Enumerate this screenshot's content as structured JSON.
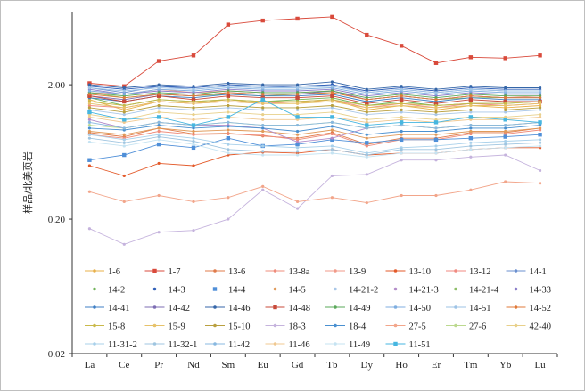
{
  "chart_data": {
    "type": "line",
    "title": "",
    "xlabel": "",
    "ylabel": "样品/北美页岩",
    "y_scale": "log",
    "ylim": [
      0.02,
      7
    ],
    "y_ticks": [
      {
        "value": 2.0,
        "label": "2.00"
      },
      {
        "value": 0.2,
        "label": "0.20"
      },
      {
        "value": 0.02,
        "label": "0.02"
      }
    ],
    "grid": false,
    "legend_position": "bottom-inside",
    "categories": [
      "La",
      "Ce",
      "Pr",
      "Nd",
      "Sm",
      "Eu",
      "Gd",
      "Tb",
      "Dy",
      "Ho",
      "Er",
      "Tm",
      "Yb",
      "Lu"
    ],
    "series": [
      {
        "name": "1-6",
        "color": "#e8b04a",
        "marker": "dot",
        "values": [
          1.55,
          1.3,
          1.5,
          1.45,
          1.55,
          1.45,
          1.45,
          1.55,
          1.3,
          1.4,
          1.3,
          1.4,
          1.35,
          1.4
        ]
      },
      {
        "name": "1-7",
        "color": "#d94a3b",
        "marker": "square",
        "values": [
          2.05,
          1.95,
          3.0,
          3.3,
          5.6,
          6.0,
          6.2,
          6.4,
          4.7,
          3.9,
          2.9,
          3.2,
          3.15,
          3.3
        ]
      },
      {
        "name": "13-6",
        "color": "#e07b4a",
        "marker": "dot",
        "values": [
          0.88,
          0.82,
          0.95,
          0.86,
          0.87,
          0.83,
          0.8,
          0.88,
          0.72,
          0.8,
          0.8,
          0.88,
          0.88,
          0.95
        ]
      },
      {
        "name": "13-8a",
        "color": "#ef8c7b",
        "marker": "dot",
        "values": [
          0.85,
          0.8,
          0.9,
          0.85,
          0.86,
          0.84,
          0.78,
          0.86,
          0.7,
          0.78,
          0.78,
          0.86,
          0.86,
          0.92
        ]
      },
      {
        "name": "13-9",
        "color": "#f19a88",
        "marker": "dot",
        "values": [
          1.75,
          1.7,
          1.85,
          1.75,
          1.8,
          1.75,
          1.75,
          1.8,
          1.55,
          1.65,
          1.55,
          1.65,
          1.6,
          1.65
        ]
      },
      {
        "name": "13-10",
        "color": "#e35a2a",
        "marker": "dot",
        "values": [
          0.5,
          0.42,
          0.52,
          0.5,
          0.6,
          0.63,
          0.62,
          0.66,
          0.6,
          0.62,
          0.62,
          0.66,
          0.68,
          0.68
        ]
      },
      {
        "name": "13-12",
        "color": "#f08a80",
        "marker": "dot",
        "values": [
          1.4,
          1.35,
          1.5,
          1.45,
          1.5,
          1.45,
          1.5,
          1.55,
          1.35,
          1.45,
          1.35,
          1.45,
          1.4,
          1.45
        ]
      },
      {
        "name": "14-1",
        "color": "#6a8fcf",
        "marker": "dot",
        "values": [
          1.9,
          1.75,
          1.95,
          1.85,
          1.95,
          1.9,
          1.95,
          2.0,
          1.75,
          1.85,
          1.75,
          1.85,
          1.8,
          1.8
        ]
      },
      {
        "name": "14-2",
        "color": "#72b35a",
        "marker": "dot",
        "values": [
          1.6,
          1.4,
          1.55,
          1.5,
          1.55,
          1.5,
          1.55,
          1.6,
          1.4,
          1.5,
          1.4,
          1.45,
          1.45,
          1.5
        ]
      },
      {
        "name": "14-3",
        "color": "#2f5fb8",
        "marker": "dot",
        "values": [
          1.95,
          1.85,
          1.95,
          1.9,
          2.0,
          1.95,
          1.95,
          2.0,
          1.8,
          1.9,
          1.8,
          1.9,
          1.85,
          1.85
        ]
      },
      {
        "name": "14-4",
        "color": "#4f8fd8",
        "marker": "square",
        "values": [
          0.55,
          0.6,
          0.72,
          0.68,
          0.8,
          0.7,
          0.72,
          0.78,
          0.74,
          0.78,
          0.78,
          0.8,
          0.82,
          0.85
        ]
      },
      {
        "name": "14-5",
        "color": "#e09a5a",
        "marker": "dot",
        "values": [
          0.9,
          0.85,
          0.95,
          0.9,
          0.92,
          0.9,
          0.85,
          0.92,
          0.8,
          0.85,
          0.85,
          0.9,
          0.9,
          0.95
        ]
      },
      {
        "name": "14-21-2",
        "color": "#a9c7e8",
        "marker": "dot",
        "values": [
          1.3,
          1.2,
          1.35,
          1.3,
          1.35,
          1.3,
          1.3,
          1.35,
          1.2,
          1.25,
          1.2,
          1.25,
          1.25,
          1.3
        ]
      },
      {
        "name": "14-21-3",
        "color": "#b38cc9",
        "marker": "dot",
        "values": [
          1.1,
          0.95,
          1.05,
          1.0,
          1.0,
          0.95,
          0.75,
          0.8,
          0.95,
          1.0,
          0.95,
          1.0,
          1.0,
          1.05
        ]
      },
      {
        "name": "14-21-4",
        "color": "#8fbf6a",
        "marker": "dot",
        "values": [
          1.75,
          1.6,
          1.7,
          1.65,
          1.7,
          1.65,
          1.7,
          1.75,
          1.55,
          1.65,
          1.55,
          1.6,
          1.6,
          1.6
        ]
      },
      {
        "name": "14-33",
        "color": "#8a7cc9",
        "marker": "dot",
        "values": [
          1.85,
          1.7,
          1.8,
          1.75,
          1.85,
          1.8,
          1.8,
          1.85,
          1.65,
          1.75,
          1.65,
          1.75,
          1.7,
          1.7
        ]
      },
      {
        "name": "14-41",
        "color": "#3f7fc4",
        "marker": "dot",
        "values": [
          1.6,
          1.5,
          1.65,
          1.6,
          1.7,
          1.65,
          1.65,
          1.7,
          1.5,
          1.6,
          1.5,
          1.6,
          1.55,
          1.55
        ]
      },
      {
        "name": "14-42",
        "color": "#7d6db3",
        "marker": "dot",
        "values": [
          1.65,
          1.55,
          1.7,
          1.65,
          1.75,
          1.7,
          1.7,
          1.8,
          1.55,
          1.65,
          1.55,
          1.65,
          1.6,
          1.6
        ]
      },
      {
        "name": "14-46",
        "color": "#3566a8",
        "marker": "dot",
        "values": [
          2.0,
          1.9,
          2.0,
          1.95,
          2.05,
          2.0,
          2.0,
          2.1,
          1.85,
          1.95,
          1.85,
          1.95,
          1.9,
          1.9
        ]
      },
      {
        "name": "14-48",
        "color": "#c84a3a",
        "marker": "square",
        "values": [
          1.65,
          1.5,
          1.65,
          1.55,
          1.65,
          1.6,
          1.6,
          1.65,
          1.45,
          1.55,
          1.45,
          1.55,
          1.5,
          1.5
        ]
      },
      {
        "name": "14-49",
        "color": "#5aa85a",
        "marker": "dot",
        "values": [
          1.75,
          1.65,
          1.75,
          1.7,
          1.8,
          1.75,
          1.75,
          1.8,
          1.6,
          1.7,
          1.6,
          1.7,
          1.65,
          1.65
        ]
      },
      {
        "name": "14-50",
        "color": "#7faee0",
        "marker": "dot",
        "values": [
          1.8,
          1.7,
          1.85,
          1.8,
          1.9,
          1.85,
          1.85,
          1.9,
          1.7,
          1.8,
          1.7,
          1.8,
          1.75,
          1.75
        ]
      },
      {
        "name": "14-51",
        "color": "#9ec3e6",
        "marker": "dot",
        "values": [
          1.9,
          1.8,
          1.9,
          1.85,
          1.95,
          1.9,
          1.9,
          1.95,
          1.75,
          1.85,
          1.75,
          1.85,
          1.8,
          1.8
        ]
      },
      {
        "name": "14-52",
        "color": "#e07a3a",
        "marker": "dot",
        "values": [
          1.7,
          1.6,
          1.7,
          1.65,
          1.75,
          1.7,
          1.7,
          1.75,
          1.55,
          1.65,
          1.55,
          1.65,
          1.6,
          1.6
        ]
      },
      {
        "name": "15-8",
        "color": "#c9b94a",
        "marker": "dot",
        "values": [
          1.5,
          1.4,
          1.55,
          1.5,
          1.55,
          1.5,
          1.5,
          1.55,
          1.4,
          1.45,
          1.4,
          1.45,
          1.45,
          1.5
        ]
      },
      {
        "name": "15-9",
        "color": "#e6c26a",
        "marker": "dot",
        "values": [
          1.45,
          1.35,
          1.5,
          1.45,
          1.5,
          1.45,
          1.45,
          1.5,
          1.35,
          1.4,
          1.35,
          1.4,
          1.4,
          1.45
        ]
      },
      {
        "name": "15-10",
        "color": "#b9a040",
        "marker": "dot",
        "values": [
          1.35,
          1.25,
          1.4,
          1.35,
          1.4,
          1.35,
          1.35,
          1.4,
          1.25,
          1.3,
          1.25,
          1.3,
          1.3,
          1.35
        ]
      },
      {
        "name": "18-3",
        "color": "#c5b3dd",
        "marker": "dot",
        "values": [
          0.17,
          0.13,
          0.16,
          0.165,
          0.2,
          0.33,
          0.24,
          0.42,
          0.43,
          0.55,
          0.55,
          0.58,
          0.6,
          0.46
        ]
      },
      {
        "name": "18-4",
        "color": "#4a90d0",
        "marker": "dot",
        "values": [
          0.95,
          0.92,
          1.0,
          0.95,
          0.98,
          0.95,
          0.9,
          0.98,
          0.85,
          0.9,
          0.9,
          0.95,
          0.95,
          1.0
        ]
      },
      {
        "name": "27-5",
        "color": "#f2a58a",
        "marker": "dot",
        "values": [
          0.32,
          0.27,
          0.3,
          0.27,
          0.29,
          0.35,
          0.27,
          0.29,
          0.265,
          0.3,
          0.3,
          0.33,
          0.38,
          0.37
        ]
      },
      {
        "name": "27-6",
        "color": "#bcd98f",
        "marker": "dot",
        "values": [
          1.0,
          0.95,
          1.05,
          1.0,
          1.05,
          1.0,
          1.0,
          1.05,
          0.95,
          1.0,
          0.95,
          1.0,
          1.0,
          1.05
        ]
      },
      {
        "name": "42-40",
        "color": "#e8d08a",
        "marker": "dot",
        "values": [
          1.2,
          1.1,
          1.25,
          1.2,
          1.25,
          1.2,
          1.2,
          1.25,
          1.1,
          1.15,
          1.1,
          1.15,
          1.15,
          1.2
        ]
      },
      {
        "name": "11-31-2",
        "color": "#a8d0ea",
        "marker": "dot",
        "values": [
          0.85,
          0.78,
          0.85,
          0.8,
          0.72,
          0.7,
          0.68,
          0.7,
          0.62,
          0.68,
          0.7,
          0.74,
          0.76,
          0.78
        ]
      },
      {
        "name": "11-32-1",
        "color": "#9fc5e0",
        "marker": "dot",
        "values": [
          0.8,
          0.74,
          0.82,
          0.76,
          0.66,
          0.64,
          0.64,
          0.66,
          0.6,
          0.66,
          0.66,
          0.7,
          0.72,
          0.74
        ]
      },
      {
        "name": "11-42",
        "color": "#88b8e0",
        "marker": "dot",
        "values": [
          1.05,
          0.95,
          1.05,
          1.0,
          1.05,
          1.0,
          1.0,
          1.05,
          0.95,
          1.0,
          0.95,
          1.0,
          1.0,
          1.05
        ]
      },
      {
        "name": "11-46",
        "color": "#f0c890",
        "marker": "dot",
        "values": [
          1.15,
          1.05,
          1.15,
          1.1,
          1.15,
          1.1,
          1.1,
          1.15,
          1.05,
          1.1,
          1.05,
          1.1,
          1.1,
          1.15
        ]
      },
      {
        "name": "11-49",
        "color": "#c5e3f2",
        "marker": "dot",
        "values": [
          0.75,
          0.7,
          0.78,
          0.72,
          0.62,
          0.6,
          0.6,
          0.62,
          0.58,
          0.62,
          0.62,
          0.66,
          0.68,
          0.7
        ]
      },
      {
        "name": "11-51",
        "color": "#46b6e0",
        "marker": "square",
        "values": [
          1.25,
          1.1,
          1.15,
          1.0,
          1.15,
          1.55,
          1.15,
          1.15,
          1.0,
          1.05,
          1.05,
          1.15,
          1.1,
          1.05
        ]
      }
    ]
  }
}
